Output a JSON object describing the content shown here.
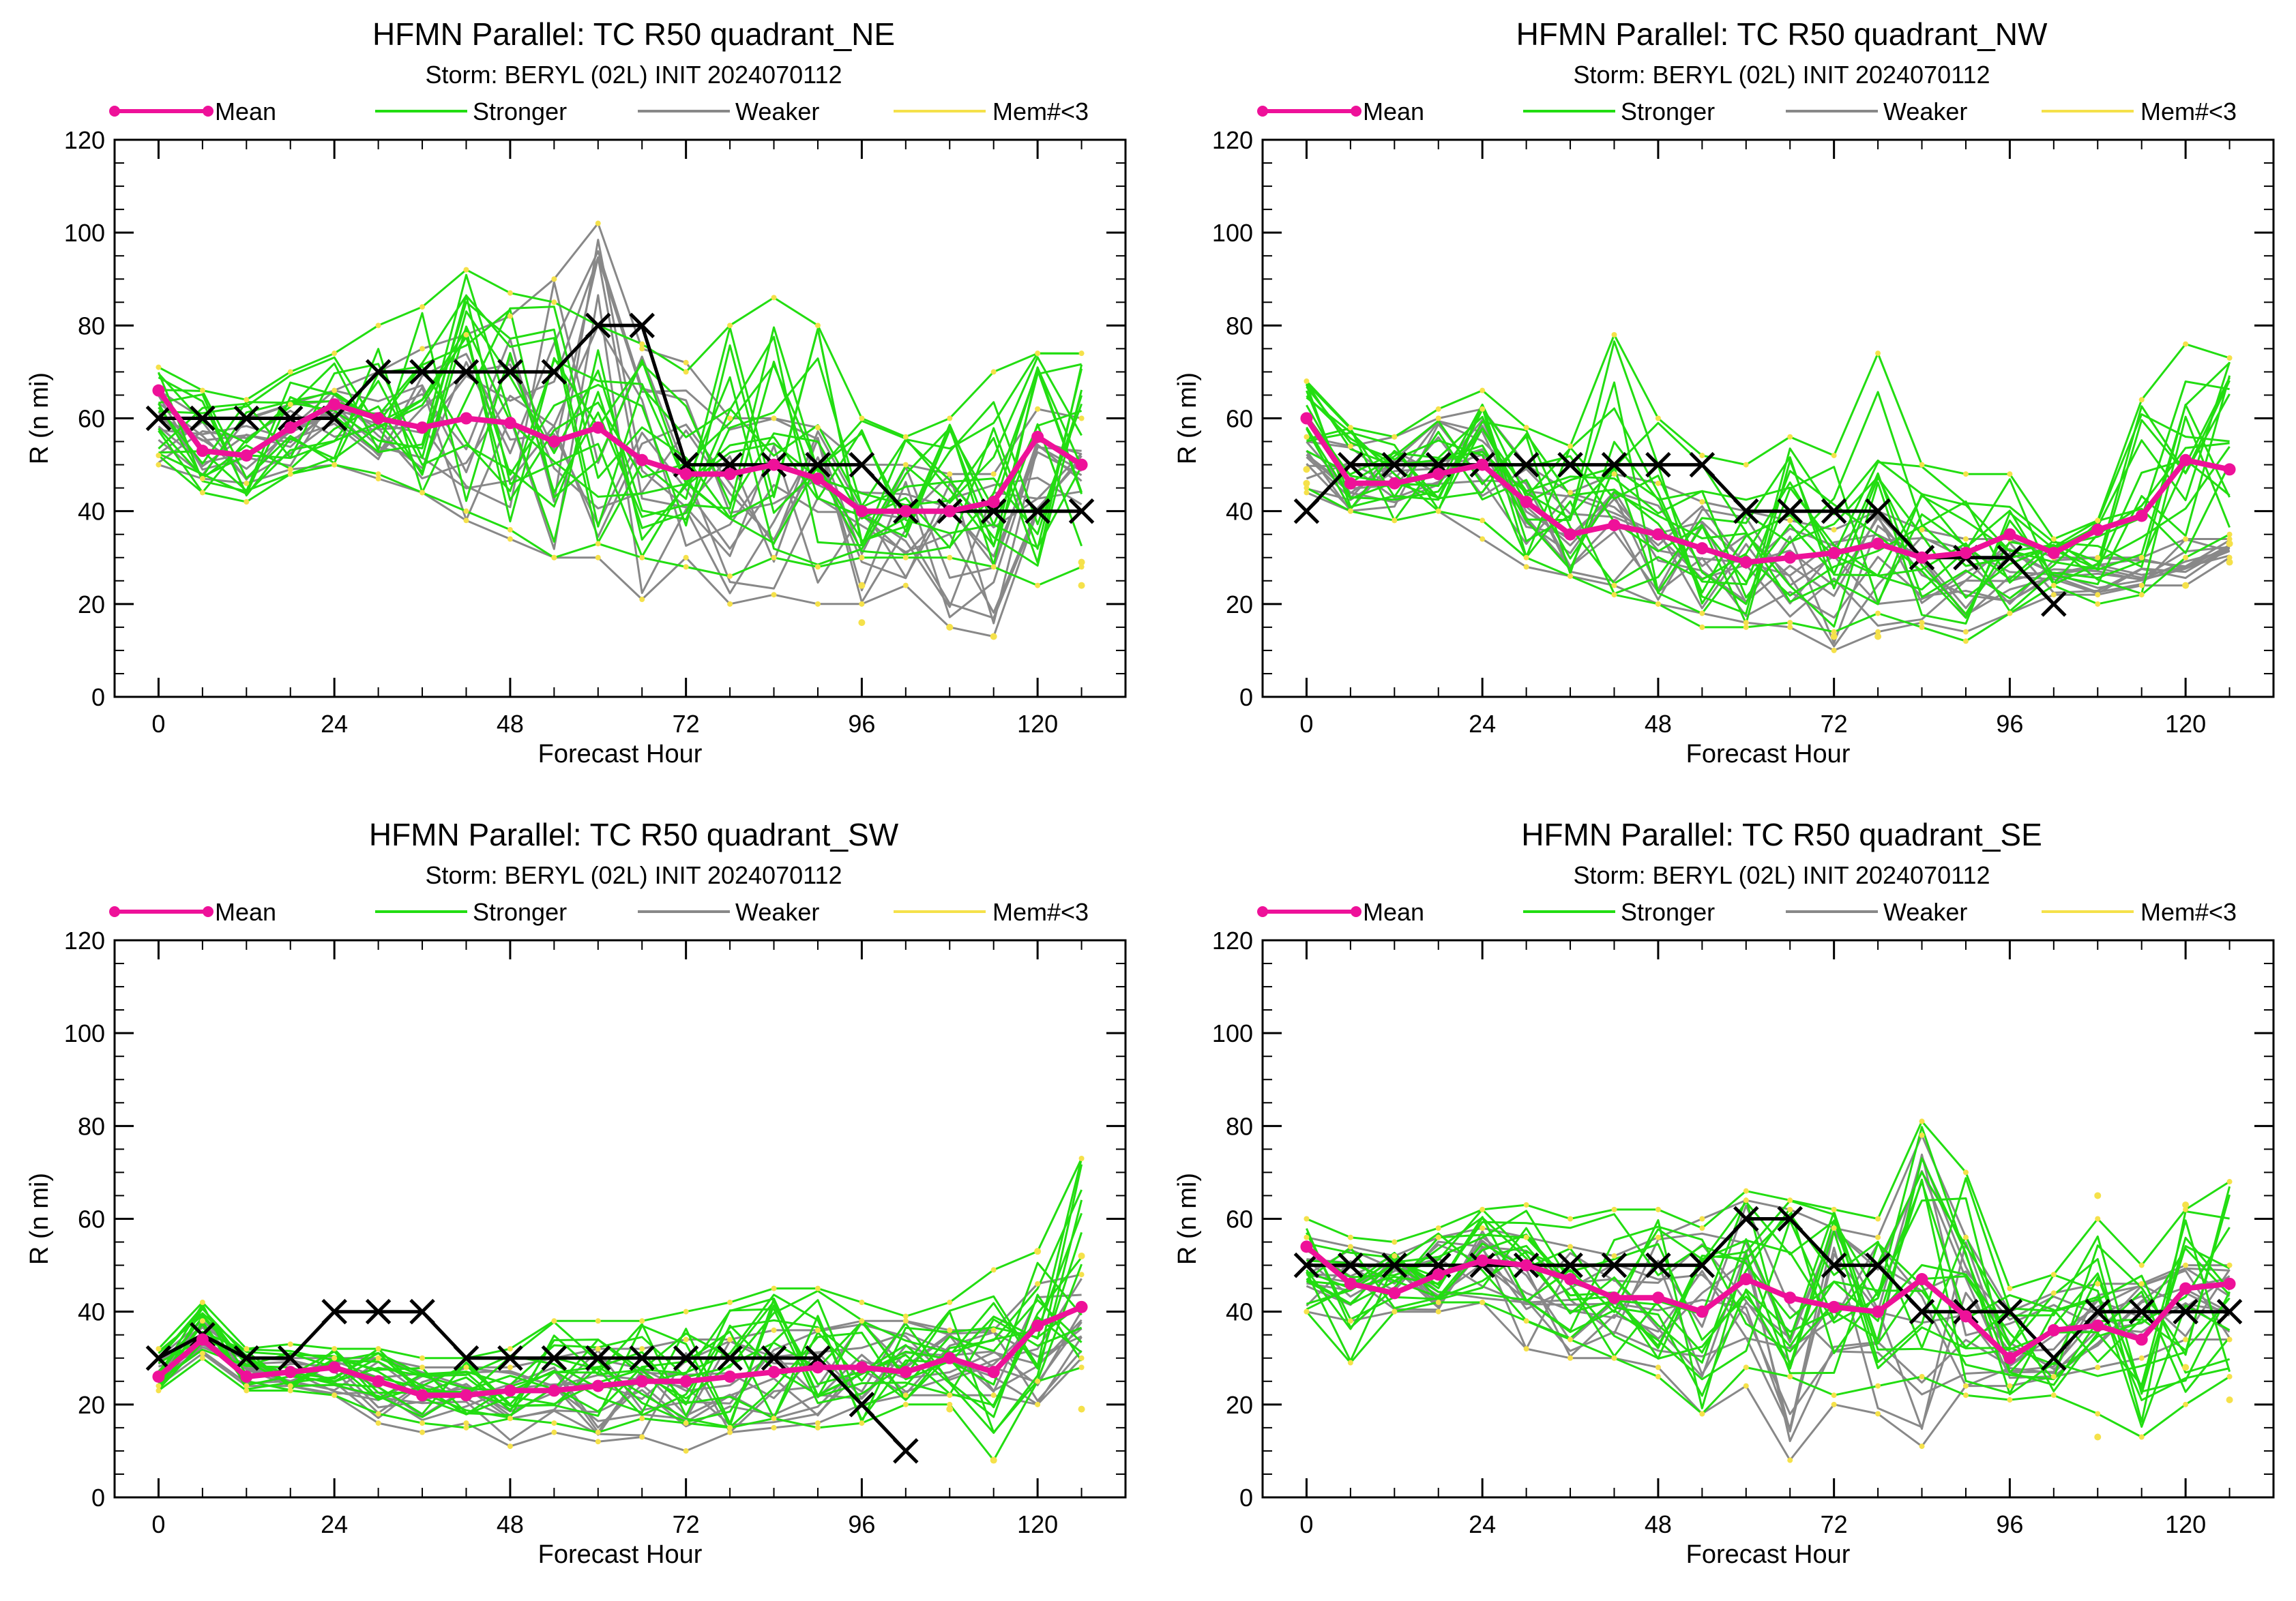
{
  "legend": {
    "mean": "Mean",
    "stronger": "Stronger",
    "weaker": "Weaker",
    "few": "Mem#<3"
  },
  "colors": {
    "mean": "#ee1199",
    "stronger": "#22dd11",
    "weaker": "#888888",
    "few": "#f5e14a",
    "obs": "#000000"
  },
  "chart_data": [
    {
      "type": "line",
      "title": "HFMN Parallel: TC  R50 quadrant_NE",
      "subtitle": "Storm: BERYL (02L) INIT 2024070112",
      "xlabel": "Forecast Hour",
      "ylabel": "R (n mi)",
      "xlim": [
        -6,
        132
      ],
      "ylim": [
        0,
        120
      ],
      "xticks": [
        0,
        24,
        48,
        72,
        96,
        120
      ],
      "yticks": [
        0,
        20,
        40,
        60,
        80,
        100,
        120
      ],
      "legend_position": "top",
      "hours": [
        0,
        6,
        12,
        18,
        24,
        30,
        36,
        42,
        48,
        54,
        60,
        66,
        72,
        78,
        84,
        90,
        96,
        102,
        108,
        114,
        120,
        126
      ],
      "series": [
        {
          "name": "Mean",
          "values": [
            66,
            53,
            52,
            58,
            63,
            60,
            58,
            60,
            59,
            55,
            58,
            51,
            48,
            48,
            50,
            47,
            40,
            40,
            40,
            42,
            56,
            50
          ]
        },
        {
          "name": "",
          "kind": "observed",
          "values": [
            60,
            60,
            60,
            60,
            60,
            70,
            70,
            70,
            70,
            70,
            80,
            80,
            50,
            50,
            50,
            50,
            50,
            40,
            40,
            40,
            40,
            40
          ]
        }
      ],
      "ensemble": {
        "stronger_envelope": {
          "min": [
            52,
            44,
            42,
            48,
            50,
            48,
            44,
            40,
            36,
            30,
            33,
            30,
            28,
            26,
            30,
            28,
            30,
            30,
            30,
            28,
            24,
            28
          ],
          "max": [
            71,
            66,
            64,
            70,
            74,
            80,
            84,
            92,
            87,
            85,
            80,
            76,
            70,
            80,
            86,
            80,
            60,
            56,
            60,
            70,
            74,
            74
          ]
        },
        "weaker_envelope": {
          "min": [
            50,
            47,
            46,
            49,
            50,
            47,
            44,
            38,
            34,
            30,
            30,
            21,
            30,
            20,
            22,
            20,
            20,
            24,
            15,
            13,
            40,
            40
          ],
          "max": [
            66,
            60,
            60,
            63,
            66,
            70,
            75,
            78,
            82,
            90,
            102,
            75,
            72,
            60,
            60,
            58,
            50,
            50,
            48,
            48,
            62,
            60
          ]
        },
        "few_member_points": [
          [
            96,
            24
          ],
          [
            96,
            16
          ],
          [
            108,
            15
          ],
          [
            114,
            13
          ],
          [
            126,
            29
          ],
          [
            126,
            24
          ]
        ]
      }
    },
    {
      "type": "line",
      "title": "HFMN Parallel: TC  R50 quadrant_NW",
      "subtitle": "Storm: BERYL (02L) INIT 2024070112",
      "xlabel": "Forecast Hour",
      "ylabel": "R (n mi)",
      "xlim": [
        -6,
        132
      ],
      "ylim": [
        0,
        120
      ],
      "xticks": [
        0,
        24,
        48,
        72,
        96,
        120
      ],
      "yticks": [
        0,
        20,
        40,
        60,
        80,
        100,
        120
      ],
      "legend_position": "top",
      "hours": [
        0,
        6,
        12,
        18,
        24,
        30,
        36,
        42,
        48,
        54,
        60,
        66,
        72,
        78,
        84,
        90,
        96,
        102,
        108,
        114,
        120,
        126
      ],
      "series": [
        {
          "name": "Mean",
          "values": [
            60,
            46,
            46,
            48,
            50,
            42,
            35,
            37,
            35,
            32,
            29,
            30,
            31,
            33,
            30,
            31,
            35,
            31,
            36,
            39,
            51,
            49
          ]
        },
        {
          "name": "",
          "kind": "observed",
          "values": [
            40,
            50,
            50,
            50,
            50,
            50,
            50,
            50,
            50,
            50,
            40,
            40,
            40,
            40,
            30,
            30,
            30,
            20
          ]
        }
      ],
      "ensemble": {
        "stronger_envelope": {
          "min": [
            45,
            40,
            38,
            40,
            38,
            30,
            26,
            22,
            20,
            15,
            15,
            16,
            14,
            18,
            15,
            12,
            18,
            24,
            20,
            22,
            30,
            35
          ],
          "max": [
            68,
            58,
            56,
            62,
            66,
            58,
            54,
            78,
            60,
            52,
            50,
            56,
            52,
            74,
            50,
            48,
            48,
            34,
            38,
            64,
            76,
            73
          ]
        },
        "weaker_envelope": {
          "min": [
            44,
            40,
            38,
            40,
            34,
            28,
            26,
            24,
            20,
            18,
            16,
            15,
            10,
            14,
            16,
            14,
            18,
            22,
            22,
            24,
            24,
            30
          ],
          "max": [
            56,
            54,
            56,
            60,
            62,
            50,
            44,
            48,
            46,
            42,
            40,
            38,
            36,
            40,
            36,
            34,
            34,
            30,
            30,
            30,
            34,
            34
          ]
        },
        "few_member_points": [
          [
            0,
            49
          ],
          [
            0,
            46
          ],
          [
            72,
            13
          ],
          [
            78,
            13
          ],
          [
            120,
            24
          ],
          [
            126,
            33
          ],
          [
            126,
            29
          ]
        ]
      }
    },
    {
      "type": "line",
      "title": "HFMN Parallel: TC  R50 quadrant_SW",
      "subtitle": "Storm: BERYL (02L) INIT 2024070112",
      "xlabel": "Forecast Hour",
      "ylabel": "R (n mi)",
      "xlim": [
        -6,
        132
      ],
      "ylim": [
        0,
        120
      ],
      "xticks": [
        0,
        24,
        48,
        72,
        96,
        120
      ],
      "yticks": [
        0,
        20,
        40,
        60,
        80,
        100,
        120
      ],
      "legend_position": "top",
      "hours": [
        0,
        6,
        12,
        18,
        24,
        30,
        36,
        42,
        48,
        54,
        60,
        66,
        72,
        78,
        84,
        90,
        96,
        102,
        108,
        114,
        120,
        126
      ],
      "series": [
        {
          "name": "Mean",
          "values": [
            26,
            34,
            26,
            27,
            28,
            25,
            22,
            22,
            23,
            23,
            24,
            25,
            25,
            26,
            27,
            28,
            28,
            27,
            30,
            27,
            37,
            41
          ]
        },
        {
          "name": "",
          "kind": "observed",
          "values": [
            30,
            35,
            30,
            30,
            40,
            40,
            40,
            30,
            30,
            30,
            30,
            30,
            30,
            30,
            30,
            30,
            20,
            10
          ]
        }
      ],
      "ensemble": {
        "stronger_envelope": {
          "min": [
            23,
            30,
            23,
            23,
            22,
            18,
            16,
            15,
            17,
            16,
            14,
            17,
            16,
            15,
            17,
            15,
            16,
            20,
            20,
            8,
            25,
            28
          ],
          "max": [
            32,
            42,
            32,
            33,
            32,
            32,
            30,
            30,
            32,
            38,
            38,
            38,
            40,
            42,
            45,
            45,
            42,
            39,
            42,
            49,
            53,
            73
          ]
        },
        "weaker_envelope": {
          "min": [
            24,
            31,
            24,
            24,
            22,
            16,
            14,
            16,
            11,
            14,
            12,
            13,
            10,
            14,
            15,
            16,
            20,
            22,
            22,
            22,
            20,
            30
          ],
          "max": [
            30,
            38,
            30,
            30,
            30,
            30,
            28,
            28,
            28,
            30,
            32,
            32,
            34,
            34,
            36,
            36,
            38,
            38,
            36,
            36,
            46,
            48
          ]
        },
        "few_member_points": [
          [
            108,
            19
          ],
          [
            114,
            8
          ],
          [
            120,
            53
          ],
          [
            126,
            52
          ],
          [
            126,
            19
          ]
        ]
      }
    },
    {
      "type": "line",
      "title": "HFMN Parallel: TC  R50 quadrant_SE",
      "subtitle": "Storm: BERYL (02L) INIT 2024070112",
      "xlabel": "Forecast Hour",
      "ylabel": "R (n mi)",
      "xlim": [
        -6,
        132
      ],
      "ylim": [
        0,
        120
      ],
      "xticks": [
        0,
        24,
        48,
        72,
        96,
        120
      ],
      "yticks": [
        0,
        20,
        40,
        60,
        80,
        100,
        120
      ],
      "legend_position": "top",
      "hours": [
        0,
        6,
        12,
        18,
        24,
        30,
        36,
        42,
        48,
        54,
        60,
        66,
        72,
        78,
        84,
        90,
        96,
        102,
        108,
        114,
        120,
        126
      ],
      "series": [
        {
          "name": "Mean",
          "values": [
            54,
            46,
            44,
            48,
            51,
            50,
            47,
            43,
            43,
            40,
            47,
            43,
            41,
            40,
            47,
            39,
            30,
            36,
            37,
            34,
            45,
            46
          ]
        },
        {
          "name": "",
          "kind": "observed",
          "values": [
            50,
            50,
            50,
            50,
            50,
            50,
            50,
            50,
            50,
            50,
            60,
            60,
            50,
            50,
            40,
            40,
            40,
            30,
            40,
            40,
            40,
            40
          ]
        }
      ],
      "ensemble": {
        "stronger_envelope": {
          "min": [
            40,
            29,
            40,
            42,
            42,
            38,
            34,
            30,
            26,
            18,
            28,
            26,
            22,
            24,
            26,
            22,
            21,
            22,
            18,
            13,
            20,
            26
          ],
          "max": [
            60,
            56,
            55,
            58,
            62,
            63,
            60,
            62,
            62,
            58,
            66,
            64,
            62,
            60,
            81,
            70,
            45,
            48,
            60,
            50,
            62,
            68
          ]
        },
        "weaker_envelope": {
          "min": [
            40,
            38,
            40,
            40,
            42,
            32,
            30,
            30,
            28,
            18,
            24,
            8,
            20,
            18,
            11,
            24,
            24,
            26,
            28,
            30,
            34,
            34
          ],
          "max": [
            56,
            54,
            52,
            56,
            58,
            56,
            54,
            52,
            56,
            60,
            64,
            62,
            58,
            56,
            78,
            56,
            40,
            44,
            46,
            46,
            50,
            50
          ]
        },
        "few_member_points": [
          [
            108,
            65
          ],
          [
            108,
            13
          ],
          [
            120,
            63
          ],
          [
            120,
            28
          ],
          [
            126,
            21
          ]
        ]
      }
    }
  ]
}
